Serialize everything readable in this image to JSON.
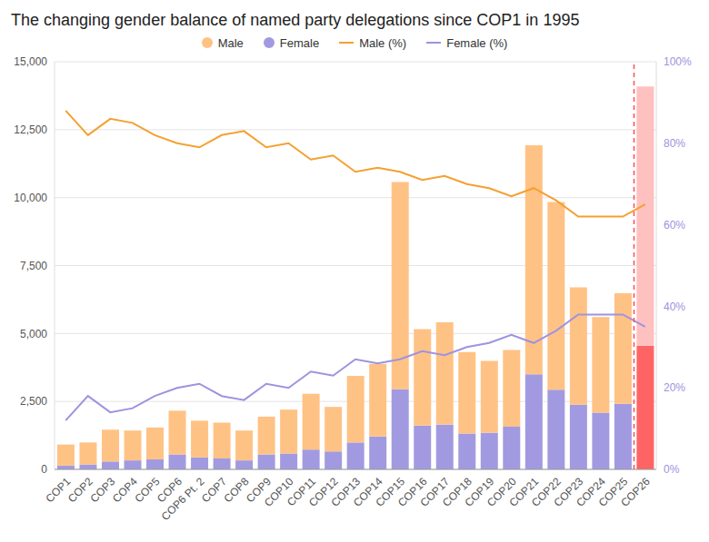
{
  "chart_data": {
    "type": "bar",
    "title": "The changing gender balance of named party delegations since COP1 in 1995",
    "categories": [
      "COP1",
      "COP2",
      "COP3",
      "COP4",
      "COP5",
      "COP6",
      "COP6 Pt. 2",
      "COP7",
      "COP8",
      "COP9",
      "COP10",
      "COP11",
      "COP12",
      "COP13",
      "COP14",
      "COP15",
      "COP16",
      "COP17",
      "COP18",
      "COP19",
      "COP20",
      "COP21",
      "COP22",
      "COP23",
      "COP24",
      "COP25",
      "COP26"
    ],
    "series": [
      {
        "name": "Male",
        "type": "bar",
        "color": "#ffc285",
        "colors": [
          "#ffc285",
          "#ffc285",
          "#ffc285",
          "#ffc285",
          "#ffc285",
          "#ffc285",
          "#ffc285",
          "#ffc285",
          "#ffc285",
          "#ffc285",
          "#ffc285",
          "#ffc285",
          "#ffc285",
          "#ffc285",
          "#ffc285",
          "#ffc285",
          "#ffc285",
          "#ffc285",
          "#ffc285",
          "#ffc285",
          "#ffc285",
          "#ffc285",
          "#ffc285",
          "#ffc285",
          "#ffc285",
          "#ffc285",
          "#ffc0c0"
        ],
        "values": [
          775,
          810,
          1170,
          1100,
          1170,
          1610,
          1350,
          1320,
          1100,
          1390,
          1615,
          2050,
          1640,
          2450,
          2670,
          7620,
          3550,
          3760,
          3000,
          2640,
          2820,
          8430,
          6910,
          4320,
          3510,
          4070,
          9540
        ]
      },
      {
        "name": "Female",
        "type": "bar",
        "color": "#a29ae0",
        "colors": [
          "#a29ae0",
          "#a29ae0",
          "#a29ae0",
          "#a29ae0",
          "#a29ae0",
          "#a29ae0",
          "#a29ae0",
          "#a29ae0",
          "#a29ae0",
          "#a29ae0",
          "#a29ae0",
          "#a29ae0",
          "#a29ae0",
          "#a29ae0",
          "#a29ae0",
          "#a29ae0",
          "#a29ae0",
          "#a29ae0",
          "#a29ae0",
          "#a29ae0",
          "#a29ae0",
          "#a29ae0",
          "#a29ae0",
          "#a29ae0",
          "#a29ae0",
          "#a29ae0",
          "#ff6464"
        ],
        "values": [
          140,
          180,
          290,
          330,
          370,
          550,
          440,
          400,
          330,
          550,
          585,
          730,
          660,
          990,
          1210,
          2950,
          1610,
          1650,
          1320,
          1350,
          1570,
          3500,
          2930,
          2380,
          2090,
          2410,
          4550
        ]
      },
      {
        "name": "Male (%)",
        "type": "line",
        "axis": "y2",
        "color": "#f5a030",
        "values": [
          88,
          82,
          86,
          85,
          82,
          80,
          79,
          82,
          83,
          79,
          80,
          76,
          77,
          73,
          74,
          73,
          71,
          72,
          70,
          69,
          67,
          69,
          66,
          62,
          62,
          62,
          65
        ]
      },
      {
        "name": "Female (%)",
        "type": "line",
        "axis": "y2",
        "color": "#9d93e0",
        "values": [
          12,
          18,
          14,
          15,
          18,
          20,
          21,
          18,
          17,
          21,
          20,
          24,
          23,
          27,
          26,
          27,
          29,
          28,
          30,
          31,
          33,
          31,
          34,
          38,
          38,
          38,
          35
        ]
      }
    ],
    "ylim": [
      0,
      15000
    ],
    "yticks": [
      0,
      {
        "value": 2500,
        "label": "2,500"
      },
      {
        "value": 5000,
        "label": "5,000"
      },
      {
        "value": 7500,
        "label": "7,500"
      },
      {
        "value": 10000,
        "label": "10,000"
      },
      {
        "value": 12500,
        "label": "12,500"
      },
      {
        "value": 15000,
        "label": "15,000"
      }
    ],
    "y2lim": [
      0,
      100
    ],
    "y2ticks": [
      {
        "value": 0,
        "label": "0%"
      },
      {
        "value": 20,
        "label": "20%"
      },
      {
        "value": 40,
        "label": "40%"
      },
      {
        "value": 60,
        "label": "60%"
      },
      {
        "value": 80,
        "label": "80%"
      },
      {
        "value": 100,
        "label": "100%"
      }
    ],
    "stacked": true,
    "grid": true,
    "legend": "top"
  }
}
